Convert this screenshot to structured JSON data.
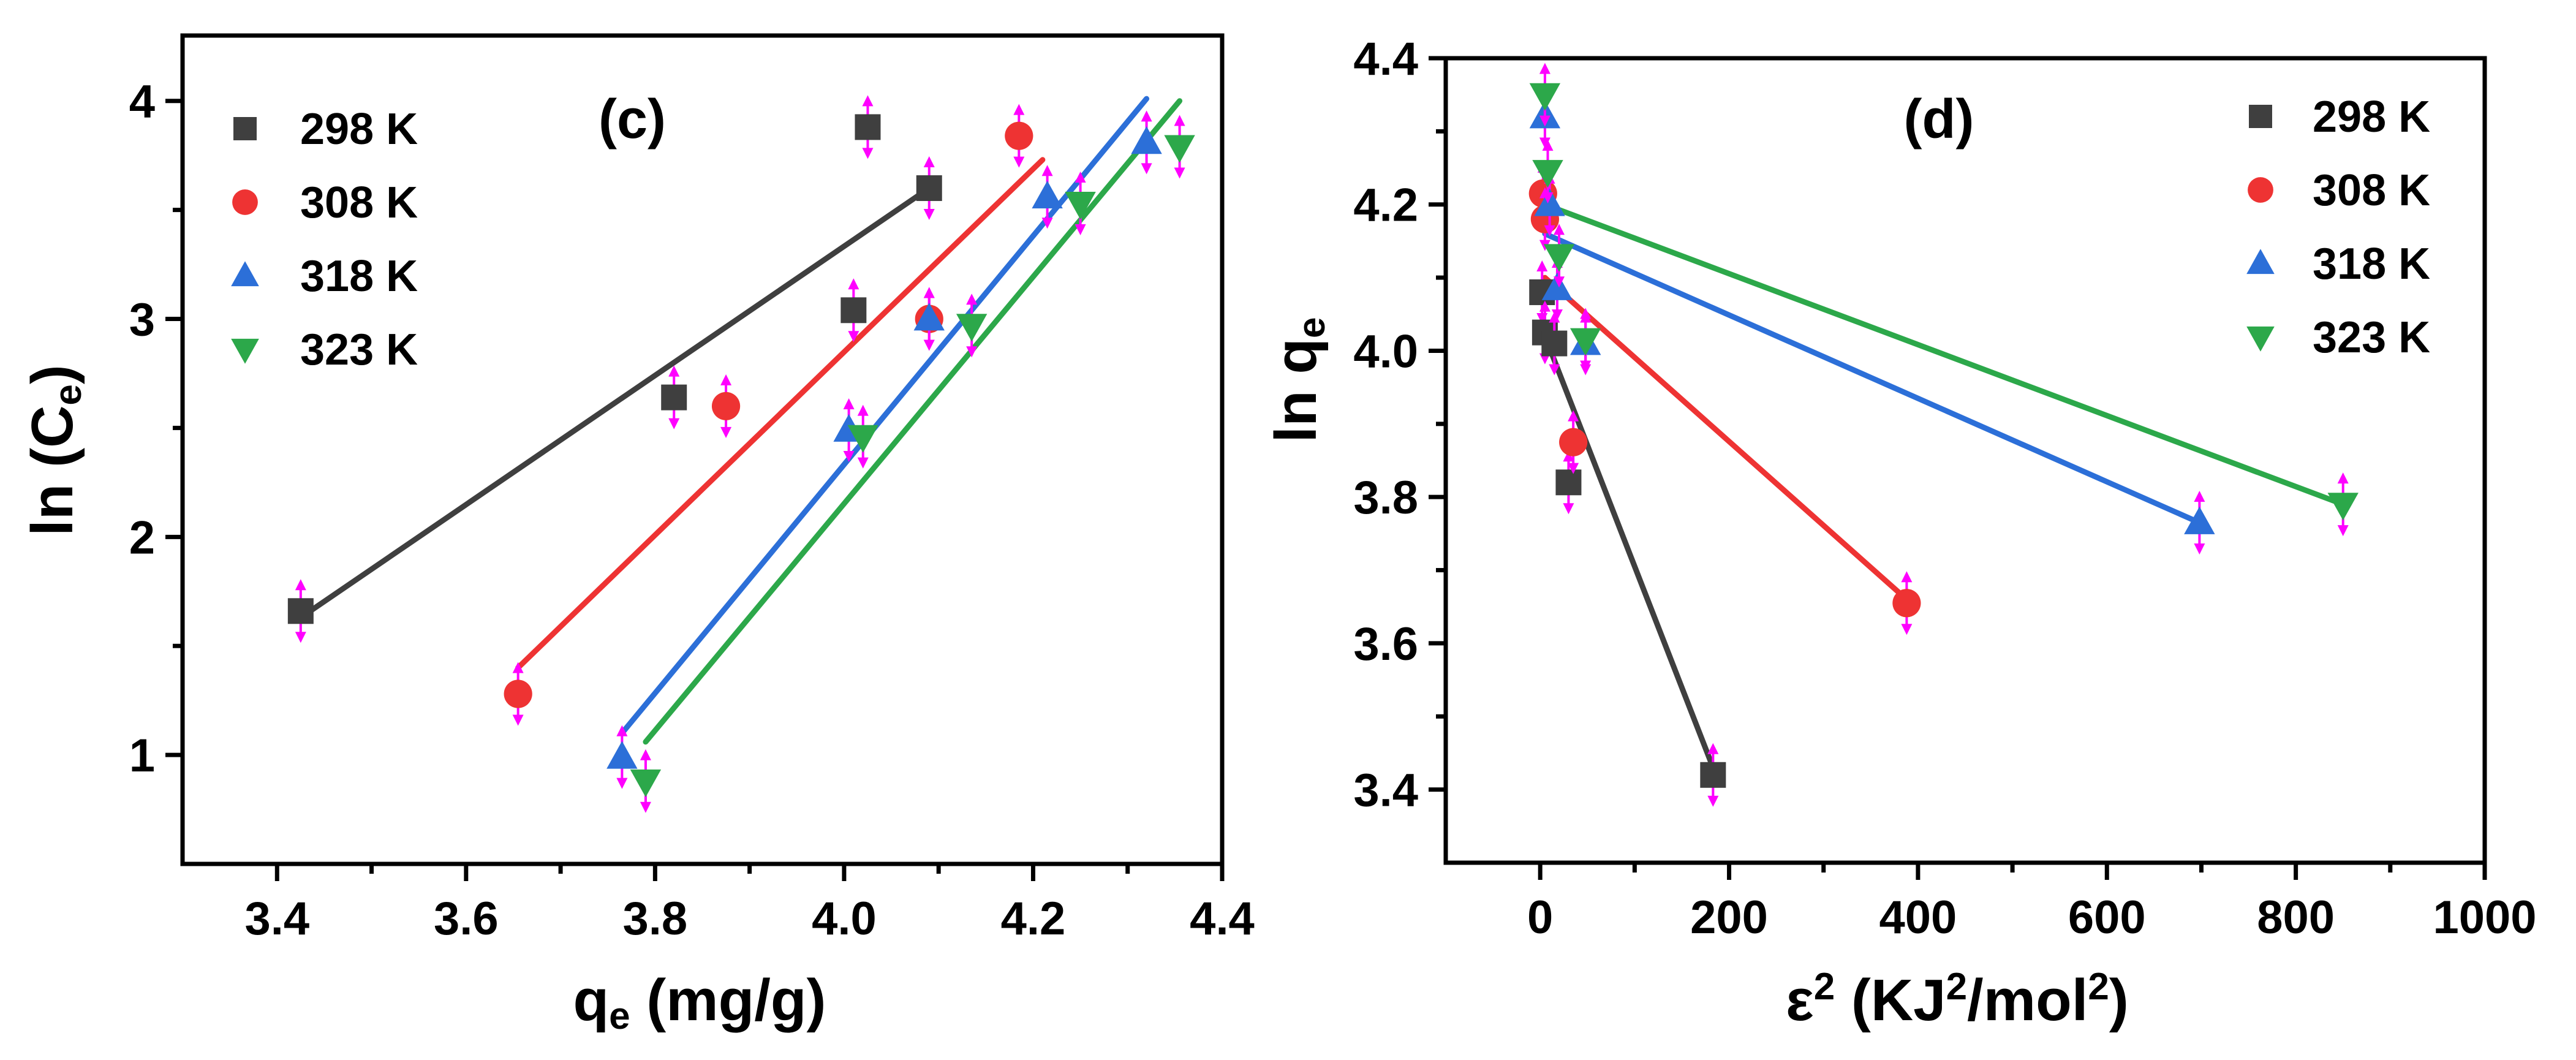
{
  "chart_data": [
    {
      "type": "scatter",
      "panel_label": "(c)",
      "xlabel": "q",
      "xlabel_sub": "e",
      "xlabel_units": " (mg/g)",
      "ylabel": "ln (C",
      "ylabel_sub": "e",
      "ylabel_close": ")",
      "xlim": [
        3.3,
        4.4
      ],
      "ylim": [
        0.5,
        4.3
      ],
      "xticks": [
        3.4,
        3.6,
        3.8,
        4.0,
        4.2,
        4.4
      ],
      "xtick_labels": [
        "3.4",
        "3.6",
        "3.8",
        "4.0",
        "4.2",
        "4.4"
      ],
      "yticks": [
        1,
        2,
        3,
        4
      ],
      "ytick_labels": [
        "1",
        "2",
        "3",
        "4"
      ],
      "legend_position": "top-left",
      "series": [
        {
          "name": "298 K",
          "color": "#3f3f3f",
          "marker": "square",
          "x": [
            3.425,
            3.82,
            4.01,
            4.025,
            4.09
          ],
          "y": [
            1.66,
            2.64,
            3.04,
            3.88,
            3.6
          ],
          "fit": {
            "x": [
              3.425,
              4.09
            ],
            "y": [
              1.63,
              3.6
            ]
          }
        },
        {
          "name": "308 K",
          "color": "#ee3333",
          "marker": "circle",
          "x": [
            3.655,
            3.875,
            4.09,
            4.185
          ],
          "y": [
            1.28,
            2.6,
            3.0,
            3.84
          ],
          "fit": {
            "x": [
              3.655,
              4.21
            ],
            "y": [
              1.4,
              3.73
            ]
          }
        },
        {
          "name": "318 K",
          "color": "#2c6fd8",
          "marker": "triangle-up",
          "x": [
            3.765,
            4.005,
            4.09,
            4.215,
            4.32
          ],
          "y": [
            0.99,
            2.49,
            3.0,
            3.56,
            3.81
          ],
          "fit": {
            "x": [
              3.765,
              4.32
            ],
            "y": [
              1.1,
              4.01
            ]
          }
        },
        {
          "name": "323 K",
          "color": "#2ca84a",
          "marker": "triangle-down",
          "x": [
            3.79,
            4.02,
            4.135,
            4.25,
            4.355
          ],
          "y": [
            0.88,
            2.46,
            2.97,
            3.53,
            3.79
          ],
          "fit": {
            "x": [
              3.79,
              4.355
            ],
            "y": [
              1.06,
              4.0
            ]
          }
        }
      ]
    },
    {
      "type": "scatter",
      "panel_label": "(d)",
      "xlabel": "ε",
      "xlabel_sup": "2",
      "xlabel_units_a": " (KJ",
      "xlabel_sup2": "2",
      "xlabel_units_b": "/mol",
      "xlabel_sup3": "2",
      "xlabel_units_c": ")",
      "ylabel": "ln q",
      "ylabel_sub": "e",
      "xlim": [
        -100,
        1000
      ],
      "ylim": [
        3.3,
        4.4
      ],
      "xticks": [
        0,
        200,
        400,
        600,
        800,
        1000
      ],
      "xtick_labels": [
        "0",
        "200",
        "400",
        "600",
        "800",
        "1000"
      ],
      "yticks": [
        3.4,
        3.6,
        3.8,
        4.0,
        4.2,
        4.4
      ],
      "ytick_labels": [
        "3.4",
        "3.6",
        "3.8",
        "4.0",
        "4.2",
        "4.4"
      ],
      "legend_position": "top-right",
      "series": [
        {
          "name": "298 K",
          "color": "#3f3f3f",
          "marker": "square",
          "x": [
            2,
            5,
            15,
            30,
            183
          ],
          "y": [
            4.08,
            4.025,
            4.01,
            3.82,
            3.42
          ],
          "fit": {
            "x": [
              5,
              183
            ],
            "y": [
              4.02,
              3.43
            ]
          }
        },
        {
          "name": "308 K",
          "color": "#ee3333",
          "marker": "circle",
          "x": [
            3,
            5,
            35,
            388
          ],
          "y": [
            4.215,
            4.18,
            3.875,
            3.655
          ],
          "fit": {
            "x": [
              5,
              388
            ],
            "y": [
              4.1,
              3.66
            ]
          }
        },
        {
          "name": "318 K",
          "color": "#2c6fd8",
          "marker": "triangle-up",
          "x": [
            5,
            10,
            18,
            48,
            698
          ],
          "y": [
            4.32,
            4.2,
            4.085,
            4.01,
            3.765
          ],
          "fit": {
            "x": [
              5,
              698
            ],
            "y": [
              4.16,
              3.765
            ]
          }
        },
        {
          "name": "323 K",
          "color": "#2ca84a",
          "marker": "triangle-down",
          "x": [
            5,
            8,
            20,
            48,
            850
          ],
          "y": [
            4.35,
            4.245,
            4.13,
            4.015,
            3.79
          ],
          "fit": {
            "x": [
              5,
              850
            ],
            "y": [
              4.2,
              3.79
            ]
          }
        }
      ]
    }
  ]
}
